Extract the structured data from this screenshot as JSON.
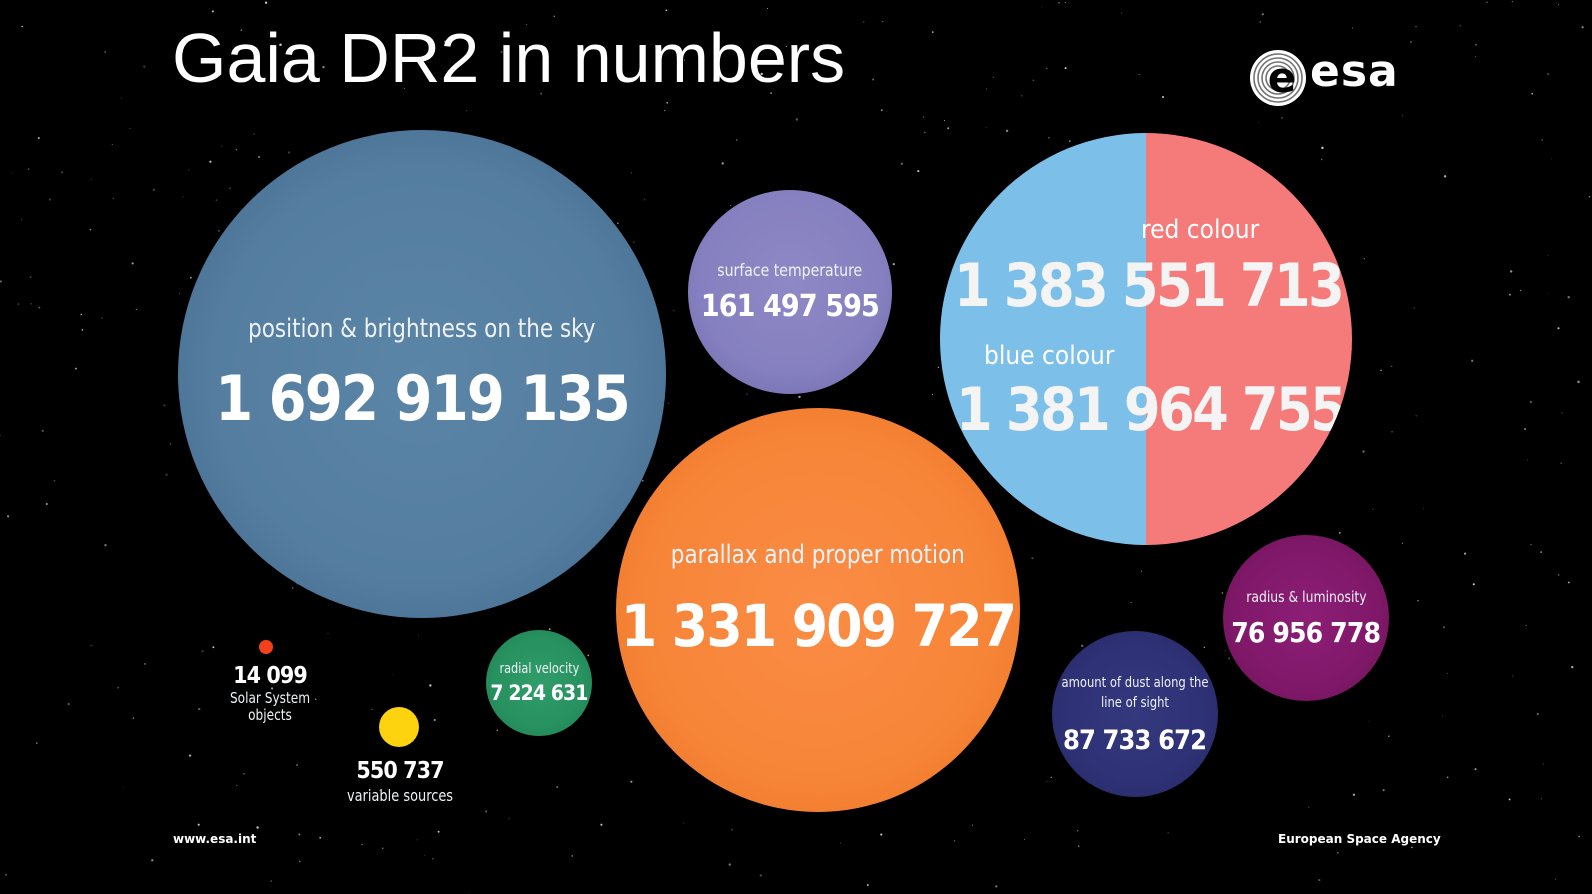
{
  "title": "Gaia DR2 in numbers",
  "logo": {
    "text": "esa",
    "icon": "esa-logo-icon"
  },
  "bubbles": {
    "position": {
      "label": "position & brightness on the sky",
      "value": "1 692 919 135",
      "color": "#547da0"
    },
    "temperature": {
      "label": "surface temperature",
      "value": "161 497 595",
      "color": "#8580bf"
    },
    "colour": {
      "red_label": "red colour",
      "red_value": "1 383 551 713",
      "red_color": "#f57b7b",
      "blue_label": "blue colour",
      "blue_value": "1 381 964 755",
      "blue_color": "#7cc0ea"
    },
    "parallax": {
      "label": "parallax and proper motion",
      "value": "1 331 909 727",
      "color": "#f78538"
    },
    "radius": {
      "label": "radius & luminosity",
      "value": "76 956 778",
      "color": "#801869"
    },
    "dust": {
      "label": "amount of dust along the line of sight",
      "value": "87 733 672",
      "color": "#2e3175"
    },
    "velocity": {
      "label": "radial velocity",
      "value": "7 224 631",
      "color": "#27915f"
    },
    "solar": {
      "value": "14 099",
      "label_line1": "Solar System",
      "label_line2": "objects",
      "color": "#f5401e"
    },
    "variable": {
      "value": "550 737",
      "label": "variable sources",
      "color": "#fcd30e"
    }
  },
  "footer": {
    "left": "www.esa.int",
    "right": "European Space Agency"
  }
}
